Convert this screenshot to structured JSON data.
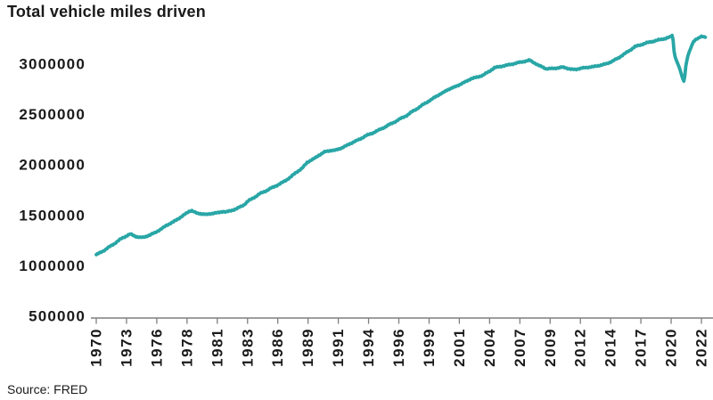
{
  "header": {
    "title": "Total vehicle miles driven"
  },
  "footer": {
    "source": "Source: FRED"
  },
  "colors": {
    "line": "#29A6A6",
    "axis": "#7F7F7F",
    "text": "#1A1A1A",
    "background": "#FFFFFF"
  },
  "chart_data": {
    "type": "line",
    "title": "Total vehicle miles driven",
    "source": "Source: FRED",
    "grid": false,
    "legend": false,
    "x_axis": {
      "unit": "monthly data, Dec 1970 through Dec 2022",
      "tick_every_months": 31,
      "tick_labels": [
        "1970",
        "1973",
        "1976",
        "1978",
        "1981",
        "1983",
        "1986",
        "1989",
        "1991",
        "1994",
        "1996",
        "1999",
        "2001",
        "2004",
        "2007",
        "2009",
        "2012",
        "2014",
        "2017",
        "2020",
        "2022"
      ]
    },
    "y_axis": {
      "tick_labels": [
        "500000",
        "1000000",
        "1500000",
        "2000000",
        "2500000",
        "3000000"
      ],
      "ticks": [
        500000,
        1000000,
        1500000,
        2000000,
        2500000,
        3000000
      ],
      "ylim": [
        500000,
        3350000
      ]
    },
    "series": [
      {
        "name": "Total vehicle miles driven",
        "color": "#29A6A6",
        "anchors_year_value": [
          [
            1970.92,
            1110000
          ],
          [
            1971.5,
            1146000
          ],
          [
            1971.92,
            1179000
          ],
          [
            1972.5,
            1222000
          ],
          [
            1972.92,
            1260000
          ],
          [
            1973.5,
            1297000
          ],
          [
            1973.83,
            1316000
          ],
          [
            1974.25,
            1292000
          ],
          [
            1974.67,
            1282000
          ],
          [
            1974.92,
            1281000
          ],
          [
            1975.5,
            1306000
          ],
          [
            1975.92,
            1328000
          ],
          [
            1976.5,
            1368000
          ],
          [
            1976.92,
            1402000
          ],
          [
            1977.5,
            1436000
          ],
          [
            1977.92,
            1467000
          ],
          [
            1978.5,
            1512000
          ],
          [
            1978.92,
            1545000
          ],
          [
            1979.08,
            1547000
          ],
          [
            1979.5,
            1521000
          ],
          [
            1979.92,
            1516000
          ],
          [
            1980.33,
            1509000
          ],
          [
            1980.92,
            1522000
          ],
          [
            1981.33,
            1527000
          ],
          [
            1981.75,
            1540000
          ],
          [
            1982.0,
            1534000
          ],
          [
            1982.42,
            1547000
          ],
          [
            1982.92,
            1567000
          ],
          [
            1983.5,
            1603000
          ],
          [
            1983.92,
            1645000
          ],
          [
            1984.5,
            1685000
          ],
          [
            1984.92,
            1718000
          ],
          [
            1985.5,
            1748000
          ],
          [
            1985.92,
            1775000
          ],
          [
            1986.5,
            1806000
          ],
          [
            1986.92,
            1835000
          ],
          [
            1987.5,
            1878000
          ],
          [
            1987.92,
            1921000
          ],
          [
            1988.5,
            1968000
          ],
          [
            1988.92,
            2026000
          ],
          [
            1989.5,
            2062000
          ],
          [
            1989.92,
            2096000
          ],
          [
            1990.42,
            2130000
          ],
          [
            1990.92,
            2144000
          ],
          [
            1991.33,
            2146000
          ],
          [
            1991.92,
            2172000
          ],
          [
            1992.5,
            2205000
          ],
          [
            1992.92,
            2230000
          ],
          [
            1993.5,
            2260000
          ],
          [
            1993.92,
            2290000
          ],
          [
            1994.5,
            2315000
          ],
          [
            1994.92,
            2340000
          ],
          [
            1995.5,
            2372000
          ],
          [
            1995.92,
            2400000
          ],
          [
            1996.5,
            2432000
          ],
          [
            1996.92,
            2462000
          ],
          [
            1997.5,
            2495000
          ],
          [
            1997.92,
            2532000
          ],
          [
            1998.5,
            2572000
          ],
          [
            1998.92,
            2608000
          ],
          [
            1999.5,
            2645000
          ],
          [
            1999.92,
            2680000
          ],
          [
            2000.5,
            2715000
          ],
          [
            2000.92,
            2747000
          ],
          [
            2001.5,
            2772000
          ],
          [
            2001.92,
            2796000
          ],
          [
            2002.5,
            2828000
          ],
          [
            2002.92,
            2856000
          ],
          [
            2003.5,
            2872000
          ],
          [
            2003.92,
            2890000
          ],
          [
            2004.5,
            2930000
          ],
          [
            2004.92,
            2965000
          ],
          [
            2005.5,
            2978000
          ],
          [
            2005.92,
            2989000
          ],
          [
            2006.5,
            3002000
          ],
          [
            2006.92,
            3014000
          ],
          [
            2007.5,
            3028000
          ],
          [
            2007.88,
            3039000
          ],
          [
            2008.25,
            3018000
          ],
          [
            2008.75,
            2983000
          ],
          [
            2008.92,
            2977000
          ],
          [
            2009.33,
            2954000
          ],
          [
            2009.92,
            2957000
          ],
          [
            2010.42,
            2964000
          ],
          [
            2010.75,
            2970000
          ],
          [
            2010.92,
            2967000
          ],
          [
            2011.33,
            2952000
          ],
          [
            2011.58,
            2947000
          ],
          [
            2011.92,
            2950000
          ],
          [
            2012.42,
            2961000
          ],
          [
            2012.92,
            2969000
          ],
          [
            2013.42,
            2975000
          ],
          [
            2013.92,
            2988000
          ],
          [
            2014.5,
            3004000
          ],
          [
            2014.92,
            3026000
          ],
          [
            2015.5,
            3061000
          ],
          [
            2015.92,
            3095000
          ],
          [
            2016.5,
            3139000
          ],
          [
            2016.92,
            3174000
          ],
          [
            2017.5,
            3195000
          ],
          [
            2017.92,
            3212000
          ],
          [
            2018.5,
            3227000
          ],
          [
            2018.92,
            3240000
          ],
          [
            2019.5,
            3254000
          ],
          [
            2019.92,
            3269000
          ],
          [
            2020.08,
            3286000
          ],
          [
            2020.17,
            3240000
          ],
          [
            2020.25,
            3130000
          ],
          [
            2020.33,
            3077000
          ],
          [
            2020.42,
            3047000
          ],
          [
            2020.5,
            3023000
          ],
          [
            2020.58,
            2999000
          ],
          [
            2020.67,
            2975000
          ],
          [
            2020.75,
            2947000
          ],
          [
            2020.83,
            2915000
          ],
          [
            2020.92,
            2882000
          ],
          [
            2021.0,
            2852000
          ],
          [
            2021.08,
            2831000
          ],
          [
            2021.17,
            2883000
          ],
          [
            2021.25,
            2981000
          ],
          [
            2021.33,
            3033000
          ],
          [
            2021.42,
            3077000
          ],
          [
            2021.5,
            3109000
          ],
          [
            2021.58,
            3134000
          ],
          [
            2021.67,
            3157000
          ],
          [
            2021.75,
            3181000
          ],
          [
            2021.83,
            3204000
          ],
          [
            2021.92,
            3225000
          ],
          [
            2022.08,
            3245000
          ],
          [
            2022.25,
            3255000
          ],
          [
            2022.42,
            3263000
          ],
          [
            2022.58,
            3272000
          ],
          [
            2022.75,
            3272000
          ],
          [
            2022.92,
            3268000
          ]
        ]
      }
    ]
  }
}
